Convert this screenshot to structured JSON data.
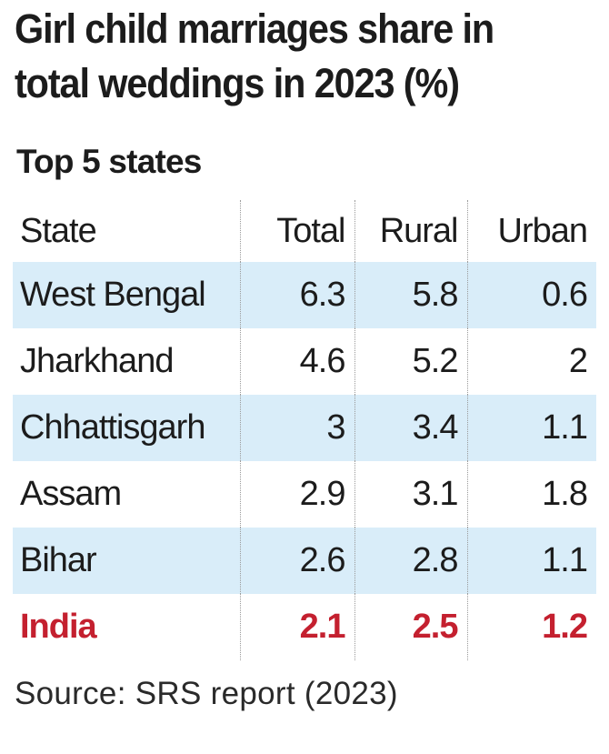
{
  "title": "Girl child marriages share in total weddings in 2023 (%)",
  "subtitle": "Top 5 states",
  "source": "Source: SRS report (2023)",
  "colors": {
    "row_shade": "#d9edf9",
    "highlight_text": "#c4202f",
    "divider": "#9a9a9a"
  },
  "chart_data": {
    "type": "table",
    "title": "Girl child marriages share in total weddings in 2023 (%)",
    "subtitle": "Top 5 states",
    "columns": [
      "State",
      "Total",
      "Rural",
      "Urban"
    ],
    "rows": [
      {
        "state": "West Bengal",
        "total": "6.3",
        "rural": "5.8",
        "urban": "0.6",
        "shaded": true,
        "highlight": false
      },
      {
        "state": "Jharkhand",
        "total": "4.6",
        "rural": "5.2",
        "urban": "2",
        "shaded": false,
        "highlight": false
      },
      {
        "state": "Chhattisgarh",
        "total": "3",
        "rural": "3.4",
        "urban": "1.1",
        "shaded": true,
        "highlight": false
      },
      {
        "state": "Assam",
        "total": "2.9",
        "rural": "3.1",
        "urban": "1.8",
        "shaded": false,
        "highlight": false
      },
      {
        "state": "Bihar",
        "total": "2.6",
        "rural": "2.8",
        "urban": "1.1",
        "shaded": true,
        "highlight": false
      },
      {
        "state": "India",
        "total": "2.1",
        "rural": "2.5",
        "urban": "1.2",
        "shaded": false,
        "highlight": true
      }
    ],
    "source": "Source: SRS report (2023)"
  }
}
